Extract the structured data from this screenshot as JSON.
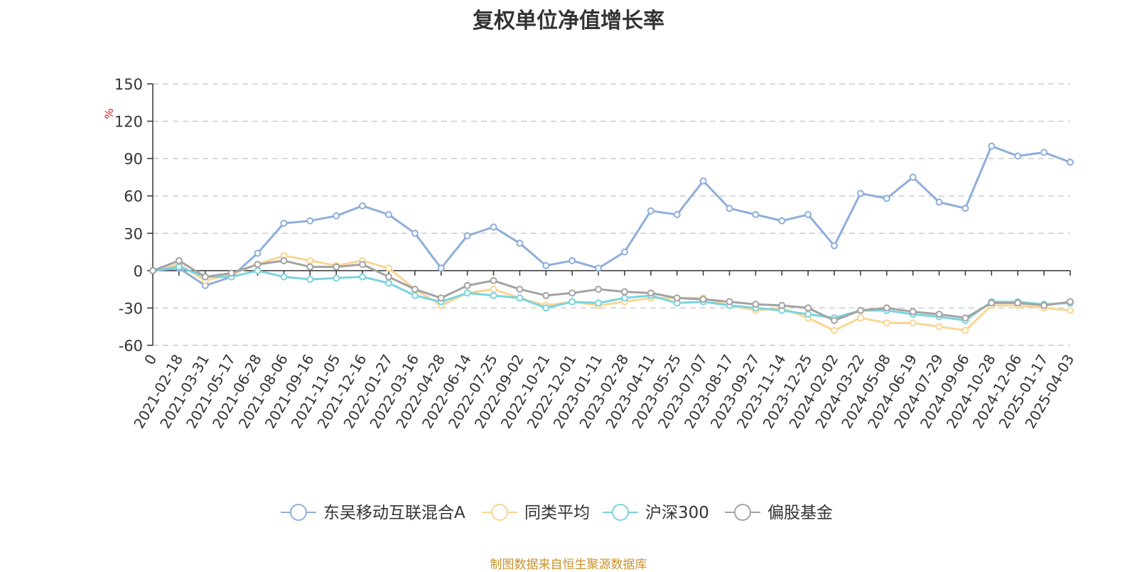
{
  "chart_data": {
    "type": "line",
    "title": "复权单位净值增长率",
    "ylabel": "%",
    "xlabel": "",
    "ylim": [
      -60,
      150
    ],
    "yticks": [
      150,
      120,
      90,
      60,
      30,
      0,
      -30,
      -60
    ],
    "grid": true,
    "legend_position": "bottom-center",
    "categories": [
      "0",
      "2021-02-18",
      "2021-03-31",
      "2021-05-17",
      "2021-06-28",
      "2021-08-06",
      "2021-09-16",
      "2021-11-05",
      "2021-12-16",
      "2022-01-27",
      "2022-03-16",
      "2022-04-28",
      "2022-06-14",
      "2022-07-25",
      "2022-09-02",
      "2022-10-21",
      "2022-12-01",
      "2023-01-11",
      "2023-02-28",
      "2023-04-11",
      "2023-05-25",
      "2023-07-07",
      "2023-08-17",
      "2023-09-27",
      "2023-11-14",
      "2023-12-25",
      "2024-02-02",
      "2024-03-22",
      "2024-05-08",
      "2024-06-19",
      "2024-07-29",
      "2024-09-06",
      "2024-10-28",
      "2024-12-06",
      "2025-01-17",
      "2025-04-03"
    ],
    "series": [
      {
        "name": "东吴移动互联混合A",
        "color": "#8eaedb",
        "values": [
          0,
          2,
          -12,
          -5,
          14,
          38,
          40,
          44,
          52,
          45,
          30,
          2,
          28,
          35,
          22,
          4,
          8,
          2,
          15,
          48,
          45,
          72,
          50,
          45,
          40,
          45,
          20,
          62,
          58,
          75,
          55,
          50,
          100,
          92,
          95,
          87
        ]
      },
      {
        "name": "同类平均",
        "color": "#fad592",
        "values": [
          0,
          5,
          -8,
          -3,
          5,
          12,
          8,
          4,
          8,
          2,
          -15,
          -28,
          -18,
          -15,
          -22,
          -28,
          -25,
          -28,
          -25,
          -22,
          -22,
          -22,
          -28,
          -32,
          -30,
          -38,
          -48,
          -38,
          -42,
          -42,
          -45,
          -48,
          -28,
          -28,
          -30,
          -32
        ]
      },
      {
        "name": "沪深300",
        "color": "#7ad3de",
        "values": [
          0,
          3,
          -5,
          -5,
          0,
          -5,
          -7,
          -6,
          -5,
          -10,
          -20,
          -25,
          -18,
          -20,
          -22,
          -30,
          -25,
          -26,
          -22,
          -20,
          -26,
          -25,
          -28,
          -30,
          -32,
          -35,
          -38,
          -32,
          -32,
          -35,
          -37,
          -40,
          -25,
          -25,
          -27,
          -26
        ]
      },
      {
        "name": "偏股基金",
        "color": "#a3a3a3",
        "values": [
          0,
          8,
          -5,
          -2,
          5,
          8,
          3,
          3,
          5,
          -5,
          -15,
          -22,
          -12,
          -8,
          -15,
          -20,
          -18,
          -15,
          -17,
          -18,
          -22,
          -23,
          -25,
          -27,
          -28,
          -30,
          -40,
          -32,
          -30,
          -33,
          -35,
          -38,
          -26,
          -26,
          -28,
          -25
        ]
      }
    ]
  },
  "source_note": "制图数据来自恒生聚源数据库"
}
